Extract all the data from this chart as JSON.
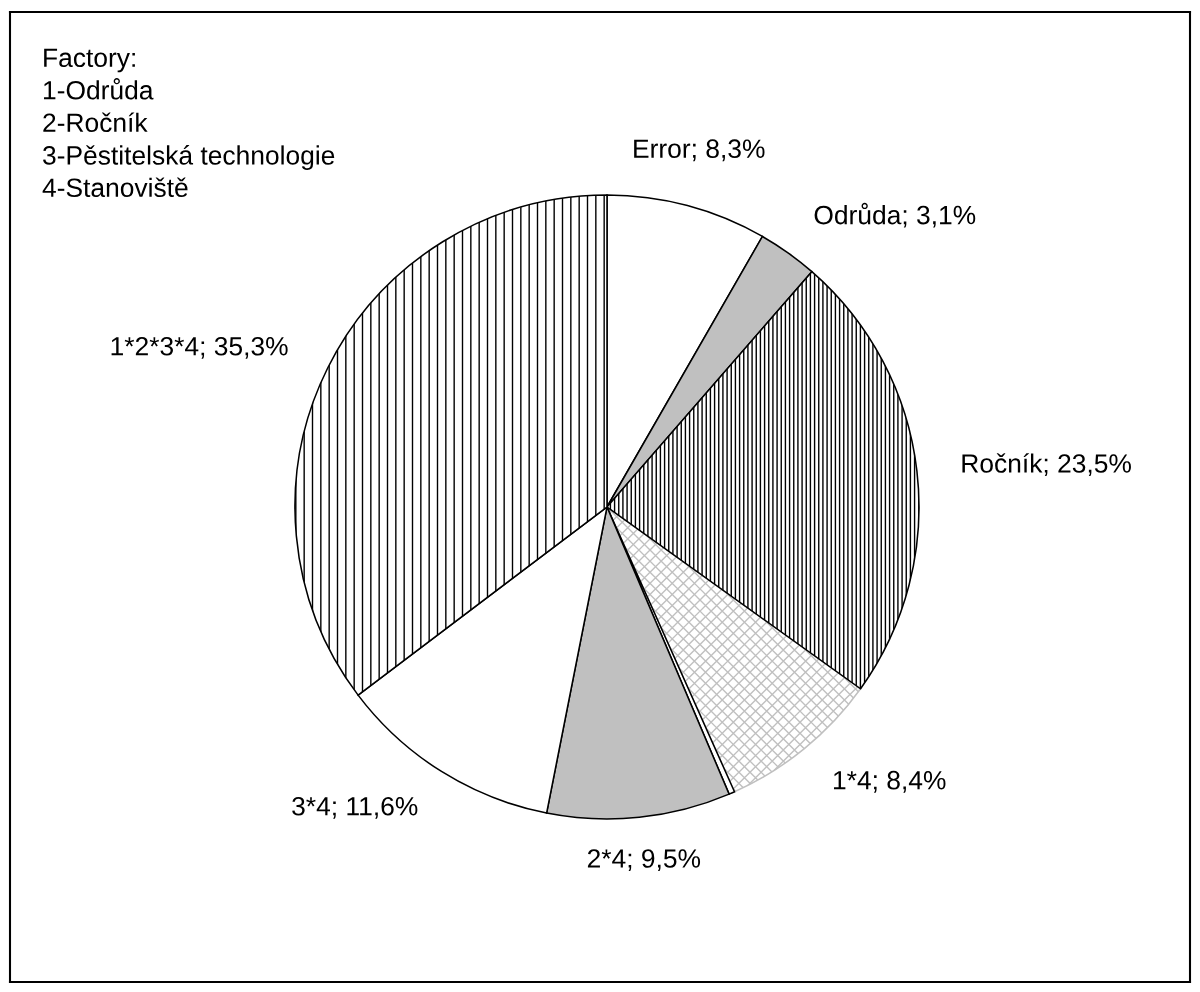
{
  "chart_data": {
    "type": "pie",
    "categories": [
      "Error",
      "Odrůda",
      "Ročník",
      "1*4",
      null,
      "2*4",
      "3*4",
      "1*2*3*4"
    ],
    "values": [
      8.3,
      3.1,
      23.5,
      8.4,
      0.3,
      9.5,
      11.6,
      35.3
    ],
    "value_labels": [
      "8,3%",
      "3,1%",
      "23,5%",
      "8,4%",
      null,
      "9,5%",
      "11,6%",
      "35,3%"
    ],
    "colors": [
      "#ffffff",
      "#c0c0c0",
      "#000000",
      "#c0c0c0",
      "#ffffff",
      "#c0c0c0",
      "#ffffff",
      "#000000"
    ],
    "annotations": [
      "Factory:",
      "1-Odrůda",
      "2-Ročník",
      "3-Pěstitelská technologie",
      "4-Stanoviště"
    ]
  }
}
